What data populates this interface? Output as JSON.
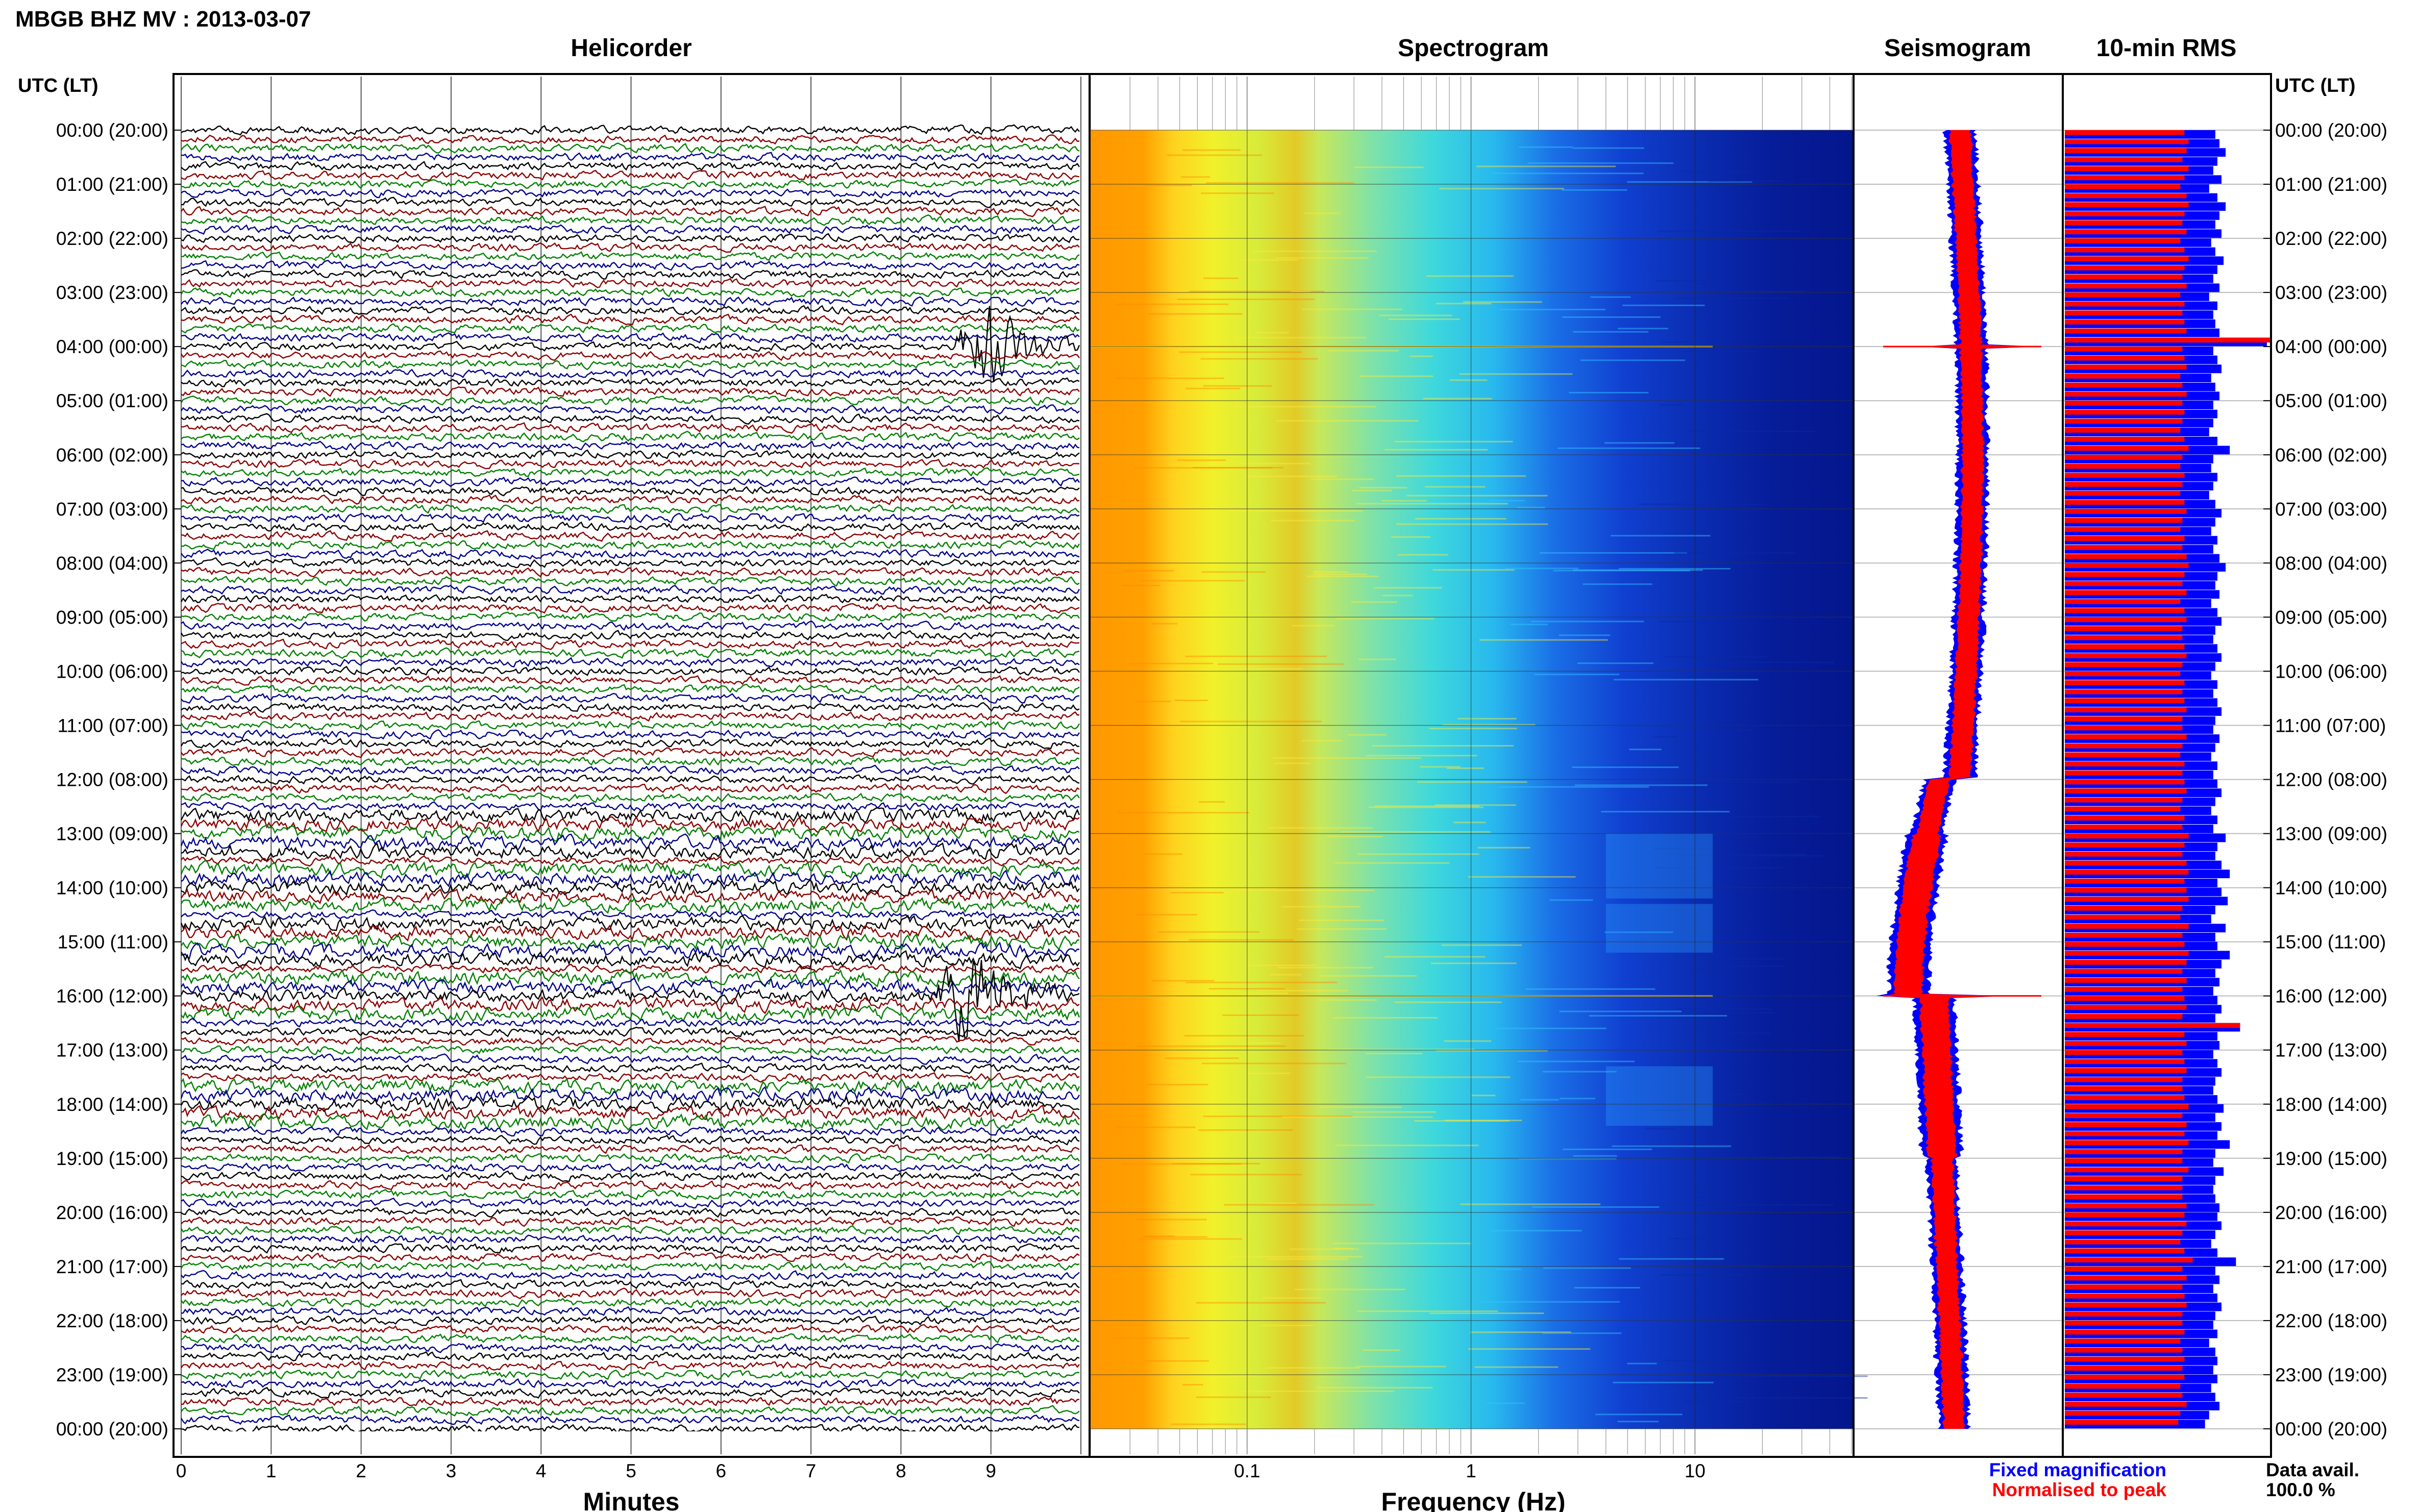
{
  "header": {
    "title": "MBGB BHZ MV : 2013-03-07"
  },
  "panels": {
    "helicorder": "Helicorder",
    "spectrogram": "Spectrogram",
    "seismogram": "Seismogram",
    "rms": "10-min RMS"
  },
  "time_axis": {
    "label": "UTC (LT)",
    "ticks": [
      "00:00 (20:00)",
      "01:00 (21:00)",
      "02:00 (22:00)",
      "03:00 (23:00)",
      "04:00 (00:00)",
      "05:00 (01:00)",
      "06:00 (02:00)",
      "07:00 (03:00)",
      "08:00 (04:00)",
      "09:00 (05:00)",
      "10:00 (06:00)",
      "11:00 (07:00)",
      "12:00 (08:00)",
      "13:00 (09:00)",
      "14:00 (10:00)",
      "15:00 (11:00)",
      "16:00 (12:00)",
      "17:00 (13:00)",
      "18:00 (14:00)",
      "19:00 (15:00)",
      "20:00 (16:00)",
      "21:00 (17:00)",
      "22:00 (18:00)",
      "23:00 (19:00)",
      "00:00 (20:00)"
    ]
  },
  "helicorder_axis": {
    "label": "Minutes",
    "ticks": [
      "0",
      "1",
      "2",
      "3",
      "4",
      "5",
      "6",
      "7",
      "8",
      "9"
    ]
  },
  "spectrogram_axis": {
    "label": "Frequency (Hz)",
    "ticks": [
      "0.1",
      "1",
      "10"
    ]
  },
  "legend": {
    "fixed": "Fixed magnification",
    "normalised": "Normalised to peak",
    "data_avail_label": "Data avail.",
    "data_avail_value": "100.0 %"
  },
  "colors": {
    "trace_black": "#000000",
    "trace_red": "#8b0000",
    "trace_green": "#008000",
    "trace_blue": "#00008b",
    "fixed_blue": "#0000ff",
    "normalised_red": "#ff0000"
  },
  "chart_data": [
    {
      "type": "line",
      "panel": "Helicorder",
      "xlabel": "Minutes",
      "x_ticks": [
        0,
        1,
        2,
        3,
        4,
        5,
        6,
        7,
        8,
        9
      ],
      "xlim": [
        0,
        10
      ],
      "y_ticks": [
        "00:00 (20:00)",
        "01:00 (21:00)",
        "02:00 (22:00)",
        "03:00 (23:00)",
        "04:00 (00:00)",
        "05:00 (01:00)",
        "06:00 (02:00)",
        "07:00 (03:00)",
        "08:00 (04:00)",
        "09:00 (05:00)",
        "10:00 (06:00)",
        "11:00 (07:00)",
        "12:00 (08:00)",
        "13:00 (09:00)",
        "14:00 (10:00)",
        "15:00 (11:00)",
        "16:00 (12:00)",
        "17:00 (13:00)",
        "18:00 (14:00)",
        "19:00 (15:00)",
        "20:00 (16:00)",
        "21:00 (17:00)",
        "22:00 (18:00)",
        "23:00 (19:00)",
        "00:00 (20:00)"
      ],
      "rows": 145,
      "minutes_per_row": 10,
      "trace_colors_cycle": [
        "black",
        "red",
        "green",
        "blue"
      ],
      "grid": true,
      "events": [
        {
          "utc_hour": 4.0,
          "minute": 9.0,
          "note": "large signal burst"
        },
        {
          "utc_hour": 16.0,
          "minute": 8.8,
          "note": "signal burst"
        }
      ],
      "noisy_hours": [
        13.0,
        14.0,
        15.0,
        16.0,
        18.0
      ]
    },
    {
      "type": "heatmap",
      "panel": "Spectrogram",
      "xlabel": "Frequency (Hz)",
      "x_scale": "log",
      "xlim": [
        0.02,
        50
      ],
      "x_ticks": [
        0.1,
        1,
        10
      ],
      "y_range_utc_hours": [
        0,
        24
      ],
      "colormap": "jet",
      "dominant_band_hz": [
        0.03,
        0.3
      ],
      "grid": true
    },
    {
      "type": "line",
      "panel": "Seismogram",
      "y_range_utc_hours": [
        0,
        24
      ],
      "series": [
        {
          "name": "Fixed magnification",
          "color": "#0000ff"
        },
        {
          "name": "Normalised to peak",
          "color": "#ff0000"
        }
      ],
      "spikes_utc_hours": [
        4.0,
        16.0
      ]
    },
    {
      "type": "bar",
      "panel": "10-min RMS",
      "orientation": "horizontal",
      "y_range_utc_hours": [
        0,
        24
      ],
      "series": [
        {
          "name": "Fixed magnification",
          "color": "#0000ff",
          "values": [
            0.73,
            0.75,
            0.78,
            0.74,
            0.72,
            0.76,
            0.7,
            0.74,
            0.78,
            0.75,
            0.73,
            0.76,
            0.71,
            0.73,
            0.77,
            0.74,
            0.72,
            0.75,
            0.7,
            0.74,
            0.72,
            0.73,
            0.75,
            0.98,
            0.72,
            0.74,
            0.76,
            0.71,
            0.73,
            0.75,
            0.72,
            0.74,
            0.72,
            0.7,
            0.74,
            0.8,
            0.72,
            0.71,
            0.74,
            0.72,
            0.7,
            0.73,
            0.76,
            0.73,
            0.71,
            0.74,
            0.72,
            0.75,
            0.78,
            0.74,
            0.73,
            0.75,
            0.71,
            0.74,
            0.76,
            0.73,
            0.72,
            0.74,
            0.76,
            0.73,
            0.71,
            0.74,
            0.72,
            0.74,
            0.76,
            0.73,
            0.72,
            0.75,
            0.73,
            0.71,
            0.74,
            0.72,
            0.74,
            0.76,
            0.73,
            0.71,
            0.74,
            0.72,
            0.78,
            0.74,
            0.73,
            0.76,
            0.8,
            0.74,
            0.76,
            0.79,
            0.73,
            0.71,
            0.78,
            0.73,
            0.74,
            0.8,
            0.76,
            0.73,
            0.75,
            0.72,
            0.74,
            0.76,
            0.73,
            0.85,
            0.74,
            0.75,
            0.72,
            0.74,
            0.76,
            0.73,
            0.72,
            0.74,
            0.77,
            0.73,
            0.76,
            0.74,
            0.8,
            0.73,
            0.72,
            0.77,
            0.73,
            0.72,
            0.73,
            0.75,
            0.74,
            0.76,
            0.73,
            0.71,
            0.74,
            0.83,
            0.73,
            0.75,
            0.72,
            0.74,
            0.76,
            0.73,
            0.72,
            0.74,
            0.7,
            0.73,
            0.74,
            0.72,
            0.74,
            0.71,
            0.73,
            0.75,
            0.7,
            0.68
          ]
        },
        {
          "name": "Normalised to peak",
          "color": "#ff0000",
          "values": [
            0.58,
            0.6,
            0.59,
            0.57,
            0.6,
            0.58,
            0.56,
            0.59,
            0.6,
            0.58,
            0.57,
            0.59,
            0.56,
            0.58,
            0.6,
            0.58,
            0.57,
            0.59,
            0.56,
            0.58,
            0.57,
            0.58,
            0.59,
            1.0,
            0.57,
            0.58,
            0.59,
            0.56,
            0.57,
            0.59,
            0.57,
            0.58,
            0.57,
            0.56,
            0.58,
            0.6,
            0.57,
            0.56,
            0.58,
            0.57,
            0.56,
            0.58,
            0.59,
            0.57,
            0.56,
            0.58,
            0.57,
            0.59,
            0.6,
            0.58,
            0.57,
            0.59,
            0.56,
            0.58,
            0.59,
            0.57,
            0.57,
            0.58,
            0.59,
            0.57,
            0.56,
            0.58,
            0.57,
            0.58,
            0.59,
            0.57,
            0.57,
            0.59,
            0.57,
            0.56,
            0.58,
            0.57,
            0.58,
            0.59,
            0.57,
            0.56,
            0.58,
            0.57,
            0.6,
            0.58,
            0.57,
            0.59,
            0.6,
            0.58,
            0.59,
            0.6,
            0.57,
            0.56,
            0.6,
            0.57,
            0.58,
            0.6,
            0.59,
            0.57,
            0.59,
            0.57,
            0.58,
            0.59,
            0.57,
            0.85,
            0.58,
            0.59,
            0.57,
            0.58,
            0.59,
            0.57,
            0.57,
            0.58,
            0.6,
            0.57,
            0.59,
            0.58,
            0.6,
            0.57,
            0.57,
            0.6,
            0.57,
            0.57,
            0.57,
            0.59,
            0.58,
            0.59,
            0.57,
            0.56,
            0.58,
            0.62,
            0.57,
            0.59,
            0.57,
            0.58,
            0.59,
            0.57,
            0.57,
            0.58,
            0.56,
            0.57,
            0.58,
            0.57,
            0.58,
            0.56,
            0.57,
            0.59,
            0.56,
            0.55
          ]
        }
      ]
    }
  ]
}
